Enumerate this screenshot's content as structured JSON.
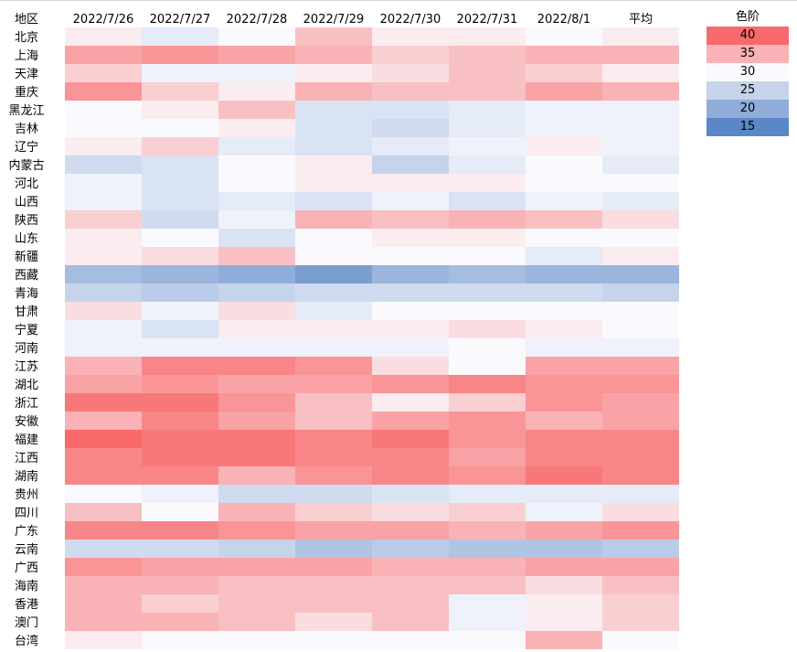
{
  "chart_data": {
    "type": "heatmap",
    "row_header": "地区",
    "columns": [
      "2022/7/26",
      "2022/7/27",
      "2022/7/28",
      "2022/7/29",
      "2022/7/30",
      "2022/7/31",
      "2022/8/1",
      "平均"
    ],
    "rows": [
      "北京",
      "上海",
      "天津",
      "重庆",
      "黑龙江",
      "吉林",
      "辽宁",
      "内蒙古",
      "河北",
      "山西",
      "陕西",
      "山东",
      "新疆",
      "西藏",
      "青海",
      "甘肃",
      "宁夏",
      "河南",
      "江苏",
      "湖北",
      "浙江",
      "安徽",
      "福建",
      "江西",
      "湖南",
      "贵州",
      "四川",
      "广东",
      "云南",
      "广西",
      "海南",
      "香港",
      "澳门",
      "台湾"
    ],
    "values": [
      [
        31,
        28,
        30,
        34,
        31,
        31,
        30,
        31
      ],
      [
        36,
        37,
        36,
        35,
        33,
        34,
        35,
        35
      ],
      [
        33,
        29,
        29,
        31,
        32,
        34,
        33,
        31
      ],
      [
        37,
        33,
        31,
        35,
        34,
        34,
        36,
        35
      ],
      [
        30,
        31,
        34,
        27,
        27,
        28,
        29,
        29
      ],
      [
        30,
        30,
        31,
        27,
        26,
        28,
        29,
        29
      ],
      [
        31,
        33,
        28,
        27,
        28,
        29,
        31,
        29
      ],
      [
        26,
        27,
        30,
        31,
        25,
        28,
        30,
        28
      ],
      [
        29,
        27,
        30,
        31,
        31,
        31,
        30,
        30
      ],
      [
        29,
        27,
        28,
        27,
        29,
        27,
        29,
        28
      ],
      [
        33,
        26,
        29,
        35,
        34,
        35,
        34,
        32
      ],
      [
        31,
        30,
        27,
        30,
        31,
        31,
        30,
        30
      ],
      [
        31,
        32,
        34,
        30,
        30,
        30,
        28,
        31
      ],
      [
        22,
        21,
        20,
        18,
        21,
        22,
        21,
        21
      ],
      [
        25,
        24,
        25,
        26,
        26,
        26,
        26,
        25
      ],
      [
        32,
        29,
        32,
        28,
        30,
        30,
        30,
        30
      ],
      [
        29,
        27,
        31,
        31,
        31,
        32,
        31,
        30
      ],
      [
        29,
        29,
        29,
        29,
        29,
        30,
        29,
        29
      ],
      [
        35,
        38,
        38,
        37,
        32,
        30,
        36,
        36
      ],
      [
        36,
        37,
        36,
        36,
        37,
        38,
        37,
        37
      ],
      [
        39,
        39,
        37,
        34,
        31,
        33,
        37,
        36
      ],
      [
        35,
        38,
        36,
        34,
        36,
        37,
        35,
        36
      ],
      [
        40,
        39,
        39,
        38,
        39,
        37,
        38,
        38
      ],
      [
        38,
        39,
        39,
        38,
        38,
        36,
        38,
        38
      ],
      [
        38,
        38,
        35,
        37,
        38,
        37,
        39,
        38
      ],
      [
        30,
        29,
        26,
        26,
        27,
        28,
        28,
        28
      ],
      [
        34,
        30,
        35,
        33,
        32,
        33,
        29,
        32
      ],
      [
        38,
        38,
        37,
        36,
        36,
        35,
        36,
        37
      ],
      [
        26,
        26,
        25,
        23,
        24,
        23,
        23,
        24
      ],
      [
        37,
        36,
        36,
        36,
        35,
        35,
        36,
        36
      ],
      [
        35,
        35,
        34,
        34,
        34,
        34,
        32,
        34
      ],
      [
        35,
        33,
        34,
        34,
        34,
        29,
        31,
        33
      ],
      [
        35,
        35,
        34,
        32,
        34,
        29,
        31,
        33
      ],
      [
        31,
        30,
        30,
        30,
        30,
        30,
        35,
        30
      ]
    ],
    "legend": {
      "title": "色阶",
      "ticks": [
        "40",
        "35",
        "30",
        "25",
        "20",
        "15"
      ]
    },
    "color_scale": {
      "15": "#5b87c6",
      "30": "#fafafe",
      "40": "#f8696b"
    }
  }
}
